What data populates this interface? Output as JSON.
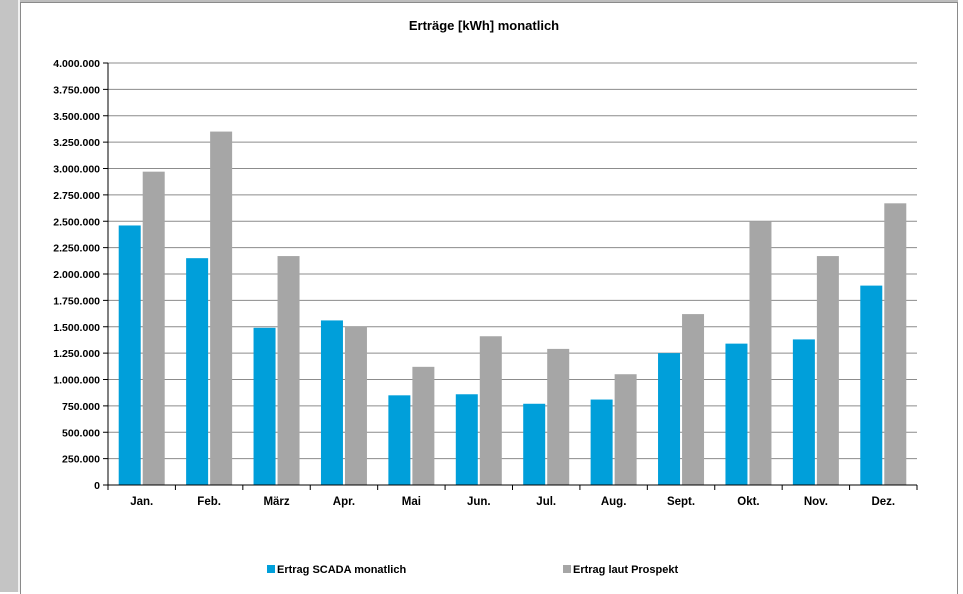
{
  "chart_data": {
    "type": "bar",
    "title": "Erträge [kWh] monatlich",
    "categories": [
      "Jan.",
      "Feb.",
      "März",
      "Apr.",
      "Mai",
      "Jun.",
      "Jul.",
      "Aug.",
      "Sept.",
      "Okt.",
      "Nov.",
      "Dez."
    ],
    "series": [
      {
        "name": "Ertrag SCADA monatlich",
        "color": "#009fda",
        "values": [
          2460000,
          2150000,
          1490000,
          1560000,
          850000,
          860000,
          770000,
          810000,
          1250000,
          1340000,
          1380000,
          1890000
        ]
      },
      {
        "name": "Ertrag laut Prospekt",
        "color": "#a6a6a6",
        "values": [
          2970000,
          3350000,
          2170000,
          1500000,
          1120000,
          1410000,
          1290000,
          1050000,
          1620000,
          2500000,
          2170000,
          2670000
        ]
      }
    ],
    "ylim": [
      0,
      4000000
    ],
    "yticks": [
      "0",
      "250.000",
      "500.000",
      "750.000",
      "1.000.000",
      "1.250.000",
      "1.500.000",
      "1.750.000",
      "2.000.000",
      "2.250.000",
      "2.500.000",
      "2.750.000",
      "3.000.000",
      "3.250.000",
      "3.500.000",
      "3.750.000",
      "4.000.000"
    ],
    "grid": true,
    "legend_position": "bottom"
  }
}
